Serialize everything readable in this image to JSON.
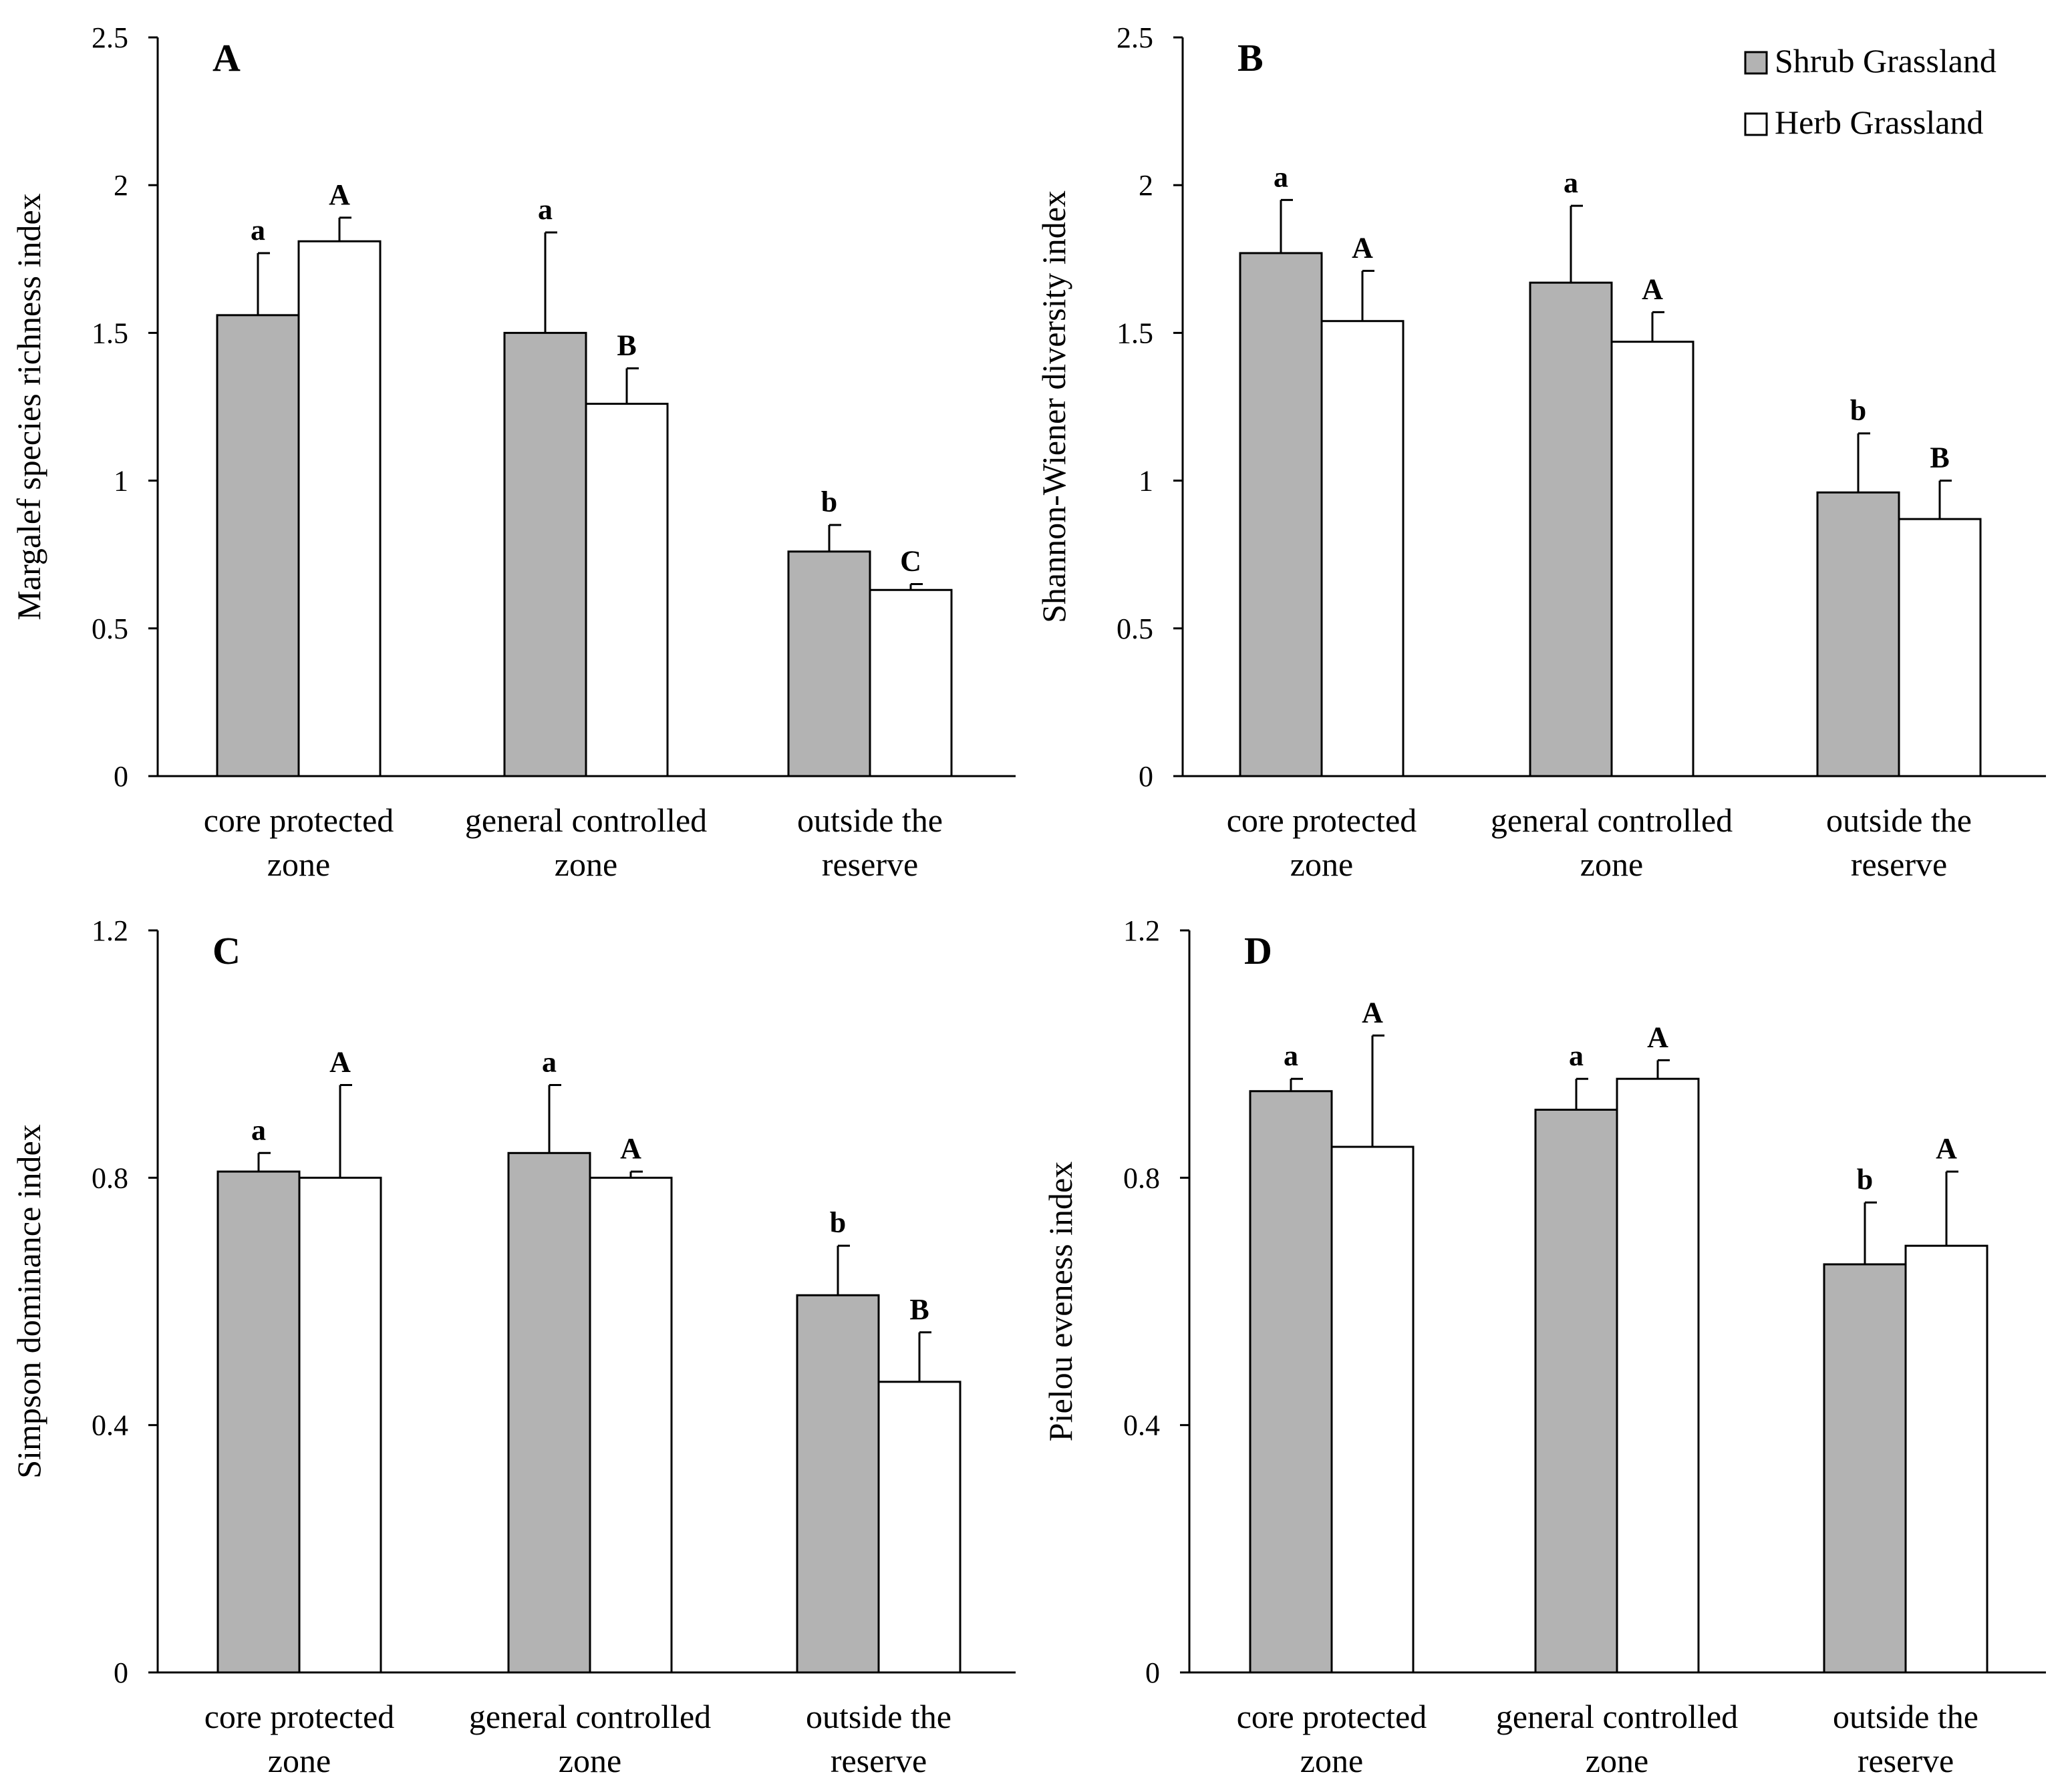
{
  "colors": {
    "shrub": "#b3b3b3",
    "herb": "#ffffff",
    "stroke": "#000000"
  },
  "legend": [
    {
      "label": "Shrub Grassland",
      "series": "shrub"
    },
    {
      "label": "Herb Grassland",
      "series": "herb"
    }
  ],
  "chart_data": [
    {
      "type": "bar",
      "panel": "A",
      "ylabel": "Margalef  species richness index",
      "ylim": [
        0,
        2.5
      ],
      "yticks": [
        0,
        0.5,
        1,
        1.5,
        2,
        2.5
      ],
      "ytick_labels": [
        "0",
        "0.5",
        "1",
        "1.5",
        "2",
        "2.5"
      ],
      "categories": [
        [
          "core protected",
          "zone"
        ],
        [
          "general controlled",
          "zone"
        ],
        [
          "outside the",
          "reserve"
        ]
      ],
      "series": [
        {
          "name": "Shrub Grassland",
          "values": [
            1.56,
            1.5,
            0.76
          ],
          "errors": [
            0.21,
            0.34,
            0.09
          ],
          "letters": [
            "a",
            "a",
            "b"
          ]
        },
        {
          "name": "Herb Grassland",
          "values": [
            1.81,
            1.26,
            0.63
          ],
          "errors": [
            0.08,
            0.12,
            0.02
          ],
          "letters": [
            "A",
            "B",
            "C"
          ]
        }
      ]
    },
    {
      "type": "bar",
      "panel": "B",
      "ylabel": "Shannon-Wiener  diversity index",
      "ylim": [
        0,
        2.5
      ],
      "yticks": [
        0,
        0.5,
        1,
        1.5,
        2,
        2.5
      ],
      "ytick_labels": [
        "0",
        "0.5",
        "1",
        "1.5",
        "2",
        "2.5"
      ],
      "categories": [
        [
          "core protected",
          "zone"
        ],
        [
          "general controlled",
          "zone"
        ],
        [
          "outside the",
          "reserve"
        ]
      ],
      "series": [
        {
          "name": "Shrub Grassland",
          "values": [
            1.77,
            1.67,
            0.96
          ],
          "errors": [
            0.18,
            0.26,
            0.2
          ],
          "letters": [
            "a",
            "a",
            "b"
          ]
        },
        {
          "name": "Herb Grassland",
          "values": [
            1.54,
            1.47,
            0.87
          ],
          "errors": [
            0.17,
            0.1,
            0.13
          ],
          "letters": [
            "A",
            "A",
            "B"
          ]
        }
      ]
    },
    {
      "type": "bar",
      "panel": "C",
      "ylabel": "Simpson dominance  index",
      "ylim": [
        0,
        1.2
      ],
      "yticks": [
        0,
        0.4,
        0.8,
        1.2
      ],
      "ytick_labels": [
        "0",
        "0.4",
        "0.8",
        "1.2"
      ],
      "categories": [
        [
          "core protected",
          "zone"
        ],
        [
          "general controlled",
          "zone"
        ],
        [
          "outside the",
          "reserve"
        ]
      ],
      "series": [
        {
          "name": "Shrub Grassland",
          "values": [
            0.81,
            0.84,
            0.61
          ],
          "errors": [
            0.03,
            0.11,
            0.08
          ],
          "letters": [
            "a",
            "a",
            "b"
          ]
        },
        {
          "name": "Herb Grassland",
          "values": [
            0.8,
            0.8,
            0.47
          ],
          "errors": [
            0.15,
            0.01,
            0.08
          ],
          "letters": [
            "A",
            "A",
            "B"
          ]
        }
      ]
    },
    {
      "type": "bar",
      "panel": "D",
      "ylabel": "Pielou eveness  index",
      "ylim": [
        0,
        1.2
      ],
      "yticks": [
        0,
        0.4,
        0.8,
        1.2
      ],
      "ytick_labels": [
        "0",
        "0.4",
        "0.8",
        "1.2"
      ],
      "categories": [
        [
          "core protected",
          "zone"
        ],
        [
          "general controlled",
          "zone"
        ],
        [
          "outside the",
          "reserve"
        ]
      ],
      "series": [
        {
          "name": "Shrub Grassland",
          "values": [
            0.94,
            0.91,
            0.66
          ],
          "errors": [
            0.02,
            0.05,
            0.1
          ],
          "letters": [
            "a",
            "a",
            "b"
          ]
        },
        {
          "name": "Herb Grassland",
          "values": [
            0.85,
            0.96,
            0.69
          ],
          "errors": [
            0.18,
            0.03,
            0.12
          ],
          "letters": [
            "A",
            "A",
            "A"
          ]
        }
      ]
    }
  ]
}
